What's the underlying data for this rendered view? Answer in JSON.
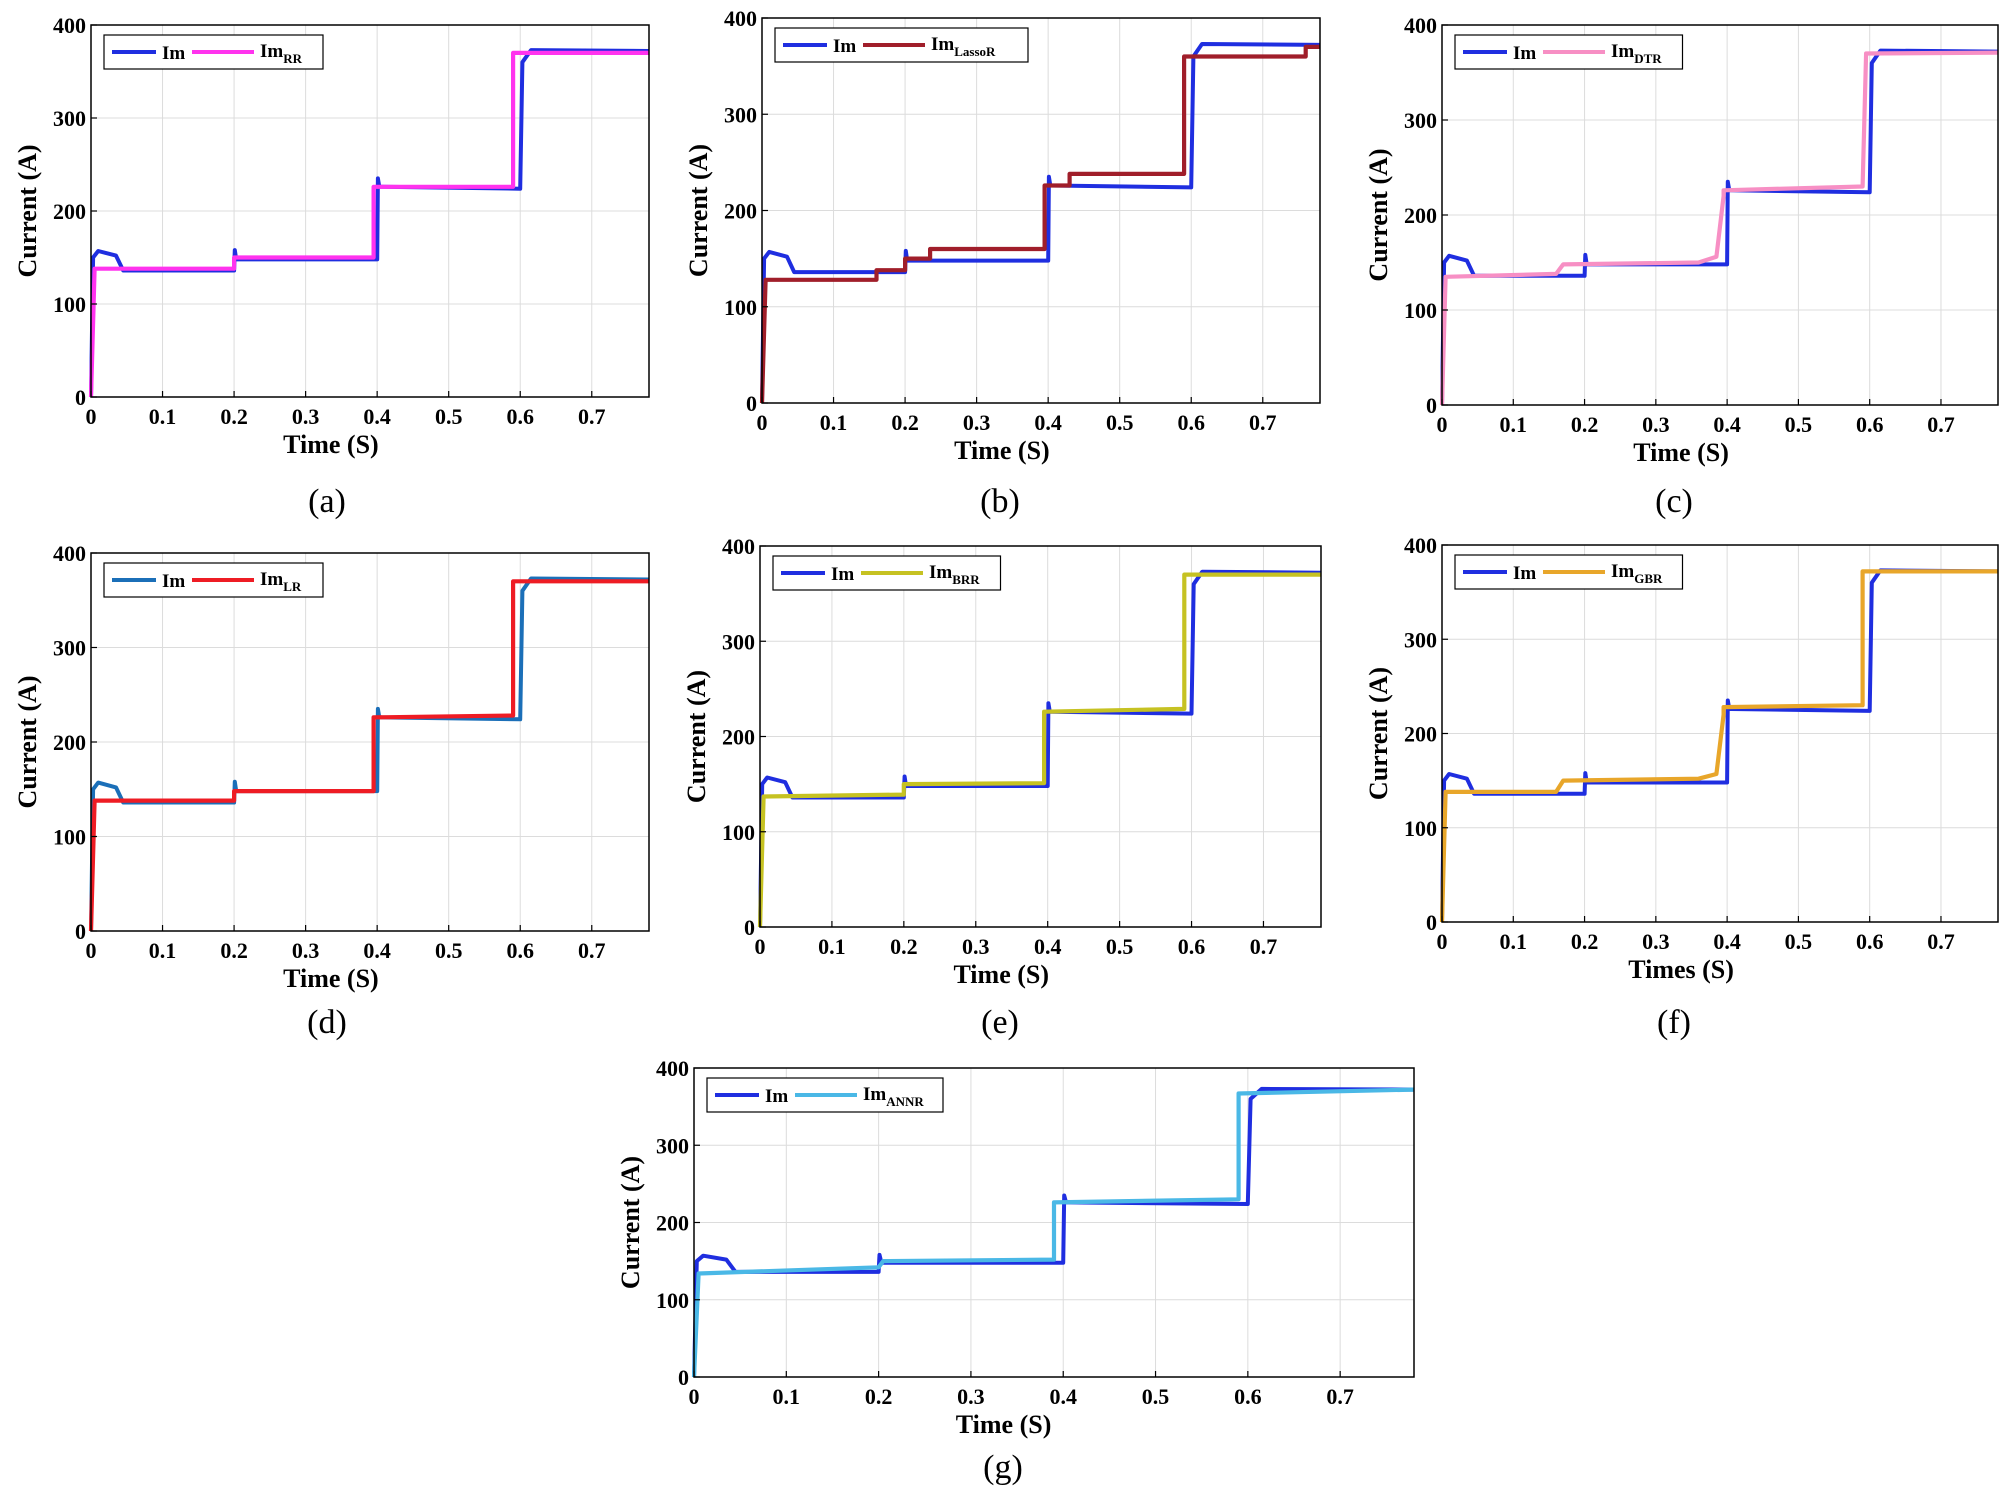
{
  "chart_data": [
    {
      "id": "a",
      "type": "line",
      "caption": "(a)",
      "xlabel": "Time (S)",
      "ylabel": "Current (A)",
      "xlim": [
        0,
        0.78
      ],
      "ylim": [
        0,
        400
      ],
      "xticks": [
        "0",
        "0.1",
        "0.2",
        "0.3",
        "0.4",
        "0.5",
        "0.6",
        "0.7"
      ],
      "yticks": [
        "0",
        "100",
        "200",
        "300",
        "400"
      ],
      "grid": true,
      "legend_position": "top-left",
      "series": [
        {
          "name": "Im",
          "sub": "",
          "color": "#1f2ee0",
          "x": [
            0,
            0.003,
            0.01,
            0.035,
            0.045,
            0.2,
            0.201,
            0.203,
            0.206,
            0.4,
            0.401,
            0.403,
            0.406,
            0.6,
            0.603,
            0.615,
            0.78
          ],
          "y": [
            0,
            150,
            157,
            152,
            136,
            136,
            158,
            148,
            148,
            148,
            235,
            226,
            226,
            224,
            360,
            373,
            372
          ]
        },
        {
          "name": "Im",
          "sub": "RR",
          "color": "#ff33ee",
          "x": [
            0,
            0.005,
            0.2,
            0.2,
            0.395,
            0.395,
            0.59,
            0.59,
            0.78
          ],
          "y": [
            0,
            138,
            138,
            150,
            150,
            226,
            226,
            370,
            370
          ]
        }
      ]
    },
    {
      "id": "b",
      "type": "line",
      "caption": "(b)",
      "xlabel": "Time (S)",
      "ylabel": "Current (A)",
      "xlim": [
        0,
        0.78
      ],
      "ylim": [
        0,
        400
      ],
      "xticks": [
        "0",
        "0.1",
        "0.2",
        "0.3",
        "0.4",
        "0.5",
        "0.6",
        "0.7"
      ],
      "yticks": [
        "0",
        "100",
        "200",
        "300",
        "400"
      ],
      "grid": true,
      "legend_position": "top-left",
      "series": [
        {
          "name": "Im",
          "sub": "",
          "color": "#1f2ee0",
          "x": [
            0,
            0.003,
            0.01,
            0.035,
            0.045,
            0.2,
            0.201,
            0.203,
            0.206,
            0.4,
            0.401,
            0.403,
            0.406,
            0.6,
            0.603,
            0.615,
            0.78
          ],
          "y": [
            0,
            150,
            157,
            152,
            136,
            136,
            158,
            148,
            148,
            148,
            235,
            226,
            226,
            224,
            360,
            373,
            372
          ]
        },
        {
          "name": "Im",
          "sub": "LassoR",
          "color": "#a01e2a",
          "x": [
            0,
            0.005,
            0.16,
            0.16,
            0.2,
            0.2,
            0.235,
            0.235,
            0.395,
            0.395,
            0.43,
            0.43,
            0.59,
            0.59,
            0.76,
            0.76,
            0.78
          ],
          "y": [
            0,
            128,
            128,
            138,
            138,
            150,
            150,
            160,
            160,
            226,
            226,
            238,
            238,
            360,
            360,
            370,
            370
          ]
        }
      ]
    },
    {
      "id": "c",
      "type": "line",
      "caption": "(c)",
      "xlabel": "Time (S)",
      "ylabel": "Current (A)",
      "xlim": [
        0,
        0.78
      ],
      "ylim": [
        0,
        400
      ],
      "xticks": [
        "0",
        "0.1",
        "0.2",
        "0.3",
        "0.4",
        "0.5",
        "0.6",
        "0.7"
      ],
      "yticks": [
        "0",
        "100",
        "200",
        "300",
        "400"
      ],
      "grid": true,
      "legend_position": "top-left",
      "series": [
        {
          "name": "Im",
          "sub": "",
          "color": "#1f2ee0",
          "x": [
            0,
            0.003,
            0.01,
            0.035,
            0.045,
            0.2,
            0.201,
            0.203,
            0.206,
            0.4,
            0.401,
            0.403,
            0.406,
            0.6,
            0.603,
            0.615,
            0.78
          ],
          "y": [
            0,
            150,
            157,
            152,
            136,
            136,
            158,
            148,
            148,
            148,
            235,
            226,
            226,
            224,
            360,
            373,
            372
          ]
        },
        {
          "name": "Im",
          "sub": "DTR",
          "color": "#f78fc4",
          "x": [
            0,
            0.005,
            0.16,
            0.17,
            0.36,
            0.385,
            0.395,
            0.395,
            0.59,
            0.595,
            0.78
          ],
          "y": [
            0,
            135,
            138,
            148,
            150,
            156,
            220,
            226,
            230,
            370,
            371
          ]
        }
      ]
    },
    {
      "id": "d",
      "type": "line",
      "caption": "(d)",
      "xlabel": "Time (S)",
      "ylabel": "Current (A)",
      "xlim": [
        0,
        0.78
      ],
      "ylim": [
        0,
        400
      ],
      "xticks": [
        "0",
        "0.1",
        "0.2",
        "0.3",
        "0.4",
        "0.5",
        "0.6",
        "0.7"
      ],
      "yticks": [
        "0",
        "100",
        "200",
        "300",
        "400"
      ],
      "grid": true,
      "legend_position": "top-left",
      "series": [
        {
          "name": "Im",
          "sub": "",
          "color": "#1b6fb8",
          "x": [
            0,
            0.003,
            0.01,
            0.035,
            0.045,
            0.2,
            0.201,
            0.203,
            0.206,
            0.4,
            0.401,
            0.403,
            0.406,
            0.6,
            0.603,
            0.615,
            0.78
          ],
          "y": [
            0,
            150,
            157,
            152,
            136,
            136,
            158,
            148,
            148,
            148,
            235,
            226,
            226,
            224,
            360,
            373,
            372
          ]
        },
        {
          "name": "Im",
          "sub": "LR",
          "color": "#ee1c24",
          "x": [
            0,
            0.005,
            0.2,
            0.2,
            0.395,
            0.395,
            0.59,
            0.59,
            0.78
          ],
          "y": [
            0,
            138,
            138,
            148,
            148,
            226,
            228,
            370,
            370
          ]
        }
      ]
    },
    {
      "id": "e",
      "type": "line",
      "caption": "(e)",
      "xlabel": "Time (S)",
      "ylabel": "Current (A)",
      "xlim": [
        0,
        0.78
      ],
      "ylim": [
        0,
        400
      ],
      "xticks": [
        "0",
        "0.1",
        "0.2",
        "0.3",
        "0.4",
        "0.5",
        "0.6",
        "0.7"
      ],
      "yticks": [
        "0",
        "100",
        "200",
        "300",
        "400"
      ],
      "grid": true,
      "legend_position": "top-left",
      "series": [
        {
          "name": "Im",
          "sub": "",
          "color": "#1f2ee0",
          "x": [
            0,
            0.003,
            0.01,
            0.035,
            0.045,
            0.2,
            0.201,
            0.203,
            0.206,
            0.4,
            0.401,
            0.403,
            0.406,
            0.6,
            0.603,
            0.615,
            0.78
          ],
          "y": [
            0,
            150,
            157,
            152,
            136,
            136,
            158,
            148,
            148,
            148,
            235,
            226,
            226,
            224,
            360,
            373,
            372
          ]
        },
        {
          "name": "Im",
          "sub": "BRR",
          "color": "#c6c222",
          "x": [
            0,
            0.005,
            0.2,
            0.2,
            0.395,
            0.395,
            0.59,
            0.59,
            0.78
          ],
          "y": [
            0,
            137,
            139,
            150,
            151,
            226,
            229,
            370,
            370
          ]
        }
      ]
    },
    {
      "id": "f",
      "type": "line",
      "caption": "(f)",
      "xlabel": "Times (S)",
      "ylabel": "Current (A)",
      "xlim": [
        0,
        0.78
      ],
      "ylim": [
        0,
        400
      ],
      "xticks": [
        "0",
        "0.1",
        "0.2",
        "0.3",
        "0.4",
        "0.5",
        "0.6",
        "0.7"
      ],
      "yticks": [
        "0",
        "100",
        "200",
        "300",
        "400"
      ],
      "grid": true,
      "legend_position": "top-left",
      "series": [
        {
          "name": "Im",
          "sub": "",
          "color": "#1f2ee0",
          "x": [
            0,
            0.003,
            0.01,
            0.035,
            0.045,
            0.2,
            0.201,
            0.203,
            0.206,
            0.4,
            0.401,
            0.403,
            0.406,
            0.6,
            0.603,
            0.615,
            0.78
          ],
          "y": [
            0,
            150,
            157,
            152,
            136,
            136,
            158,
            148,
            148,
            148,
            235,
            226,
            226,
            224,
            360,
            373,
            372
          ]
        },
        {
          "name": "Im",
          "sub": "GBR",
          "color": "#e8a62a",
          "x": [
            0,
            0.005,
            0.16,
            0.17,
            0.36,
            0.385,
            0.395,
            0.395,
            0.59,
            0.59,
            0.78
          ],
          "y": [
            0,
            138,
            138,
            150,
            152,
            157,
            220,
            228,
            230,
            372,
            372
          ]
        }
      ]
    },
    {
      "id": "g",
      "type": "line",
      "caption": "(g)",
      "xlabel": "Time (S)",
      "ylabel": "Current (A)",
      "xlim": [
        0,
        0.78
      ],
      "ylim": [
        0,
        400
      ],
      "xticks": [
        "0",
        "0.1",
        "0.2",
        "0.3",
        "0.4",
        "0.5",
        "0.6",
        "0.7"
      ],
      "yticks": [
        "0",
        "100",
        "200",
        "300",
        "400"
      ],
      "grid": true,
      "legend_position": "top-left",
      "series": [
        {
          "name": "Im",
          "sub": "",
          "color": "#1f2ee0",
          "x": [
            0,
            0.003,
            0.01,
            0.035,
            0.045,
            0.2,
            0.201,
            0.203,
            0.206,
            0.4,
            0.401,
            0.403,
            0.406,
            0.6,
            0.603,
            0.615,
            0.78
          ],
          "y": [
            0,
            150,
            157,
            152,
            136,
            136,
            158,
            148,
            148,
            148,
            235,
            226,
            226,
            224,
            360,
            373,
            372
          ]
        },
        {
          "name": "Im",
          "sub": "ANNR",
          "color": "#4ab8e6",
          "x": [
            0,
            0.005,
            0.2,
            0.205,
            0.39,
            0.39,
            0.59,
            0.59,
            0.78
          ],
          "y": [
            0,
            134,
            142,
            150,
            152,
            226,
            230,
            367,
            372
          ]
        }
      ]
    }
  ]
}
